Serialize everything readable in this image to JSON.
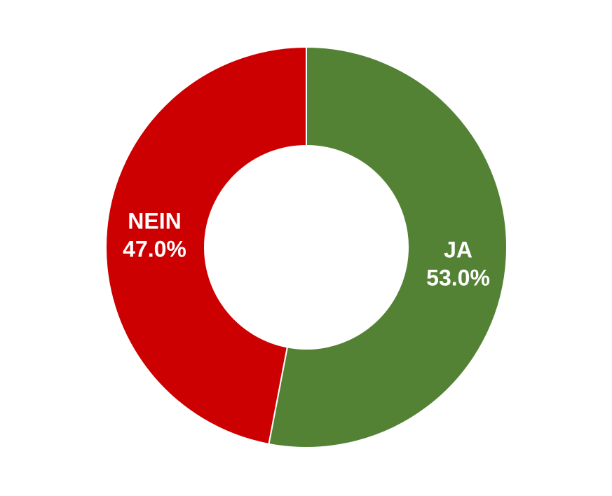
{
  "chart_data": {
    "type": "pie",
    "variant": "donut",
    "slices": [
      {
        "label": "JA",
        "value": 53.0,
        "value_label": "53.0%",
        "color": "#548235"
      },
      {
        "label": "NEIN",
        "value": 47.0,
        "value_label": "47.0%",
        "color": "#CC0000"
      }
    ],
    "legend": "none",
    "slice_border_color": "#FFFFFF"
  }
}
